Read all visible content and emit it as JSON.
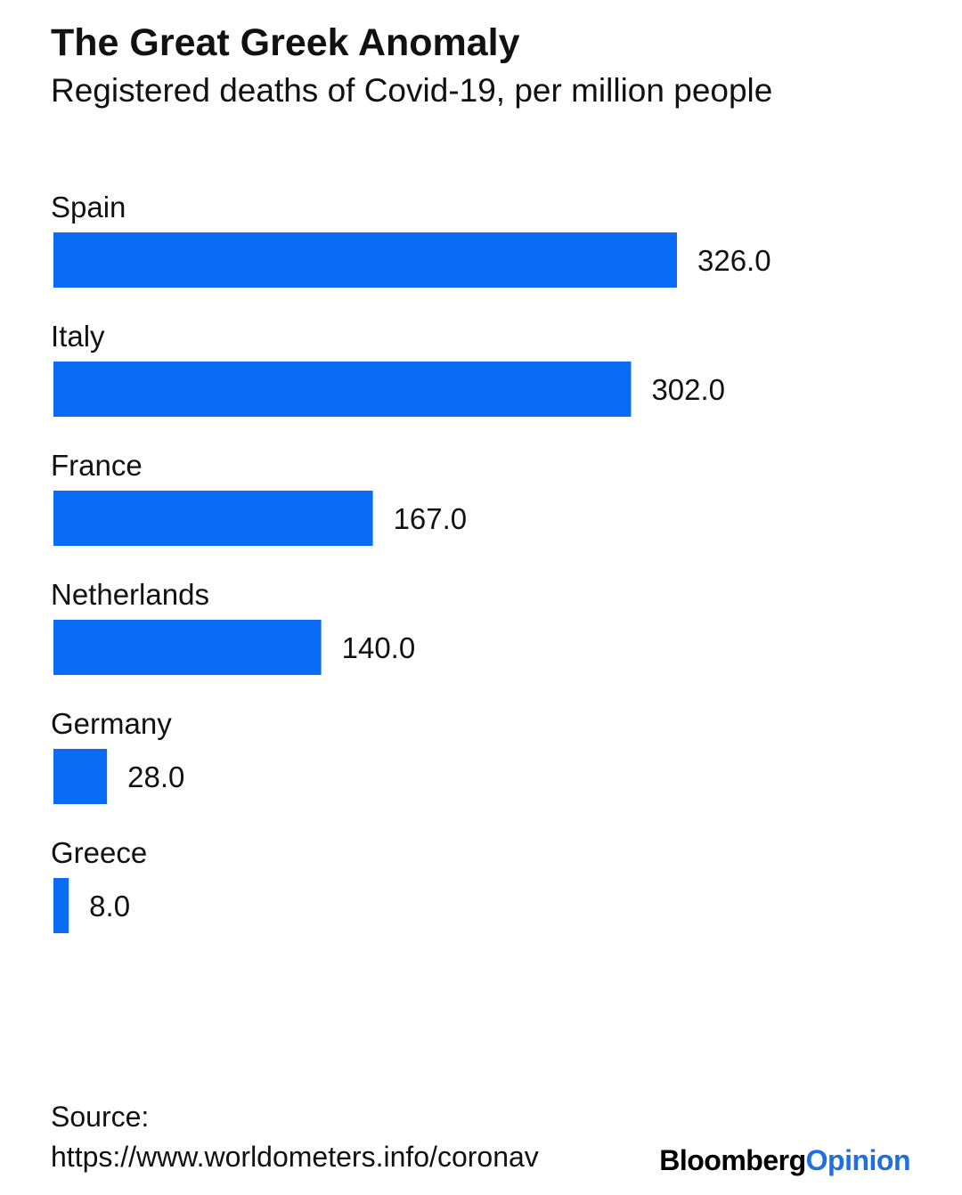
{
  "chart_data": {
    "type": "bar",
    "orientation": "horizontal",
    "title": "The Great Greek Anomaly",
    "subtitle": "Registered deaths of Covid-19, per million people",
    "categories": [
      "Spain",
      "Italy",
      "France",
      "Netherlands",
      "Germany",
      "Greece"
    ],
    "values": [
      326,
      302,
      167,
      140,
      28,
      8
    ],
    "value_labels": [
      "326.0",
      "302.0",
      "167.0",
      "140.0",
      "28.0",
      "8.0"
    ],
    "color": "#0a6cf5",
    "source_label": "Source:",
    "source": "https://www.worldometers.info/coronav",
    "logo": [
      "Bloomberg",
      "Opinion"
    ],
    "logo_colors": [
      "#000000",
      "#1f6fe0"
    ]
  }
}
